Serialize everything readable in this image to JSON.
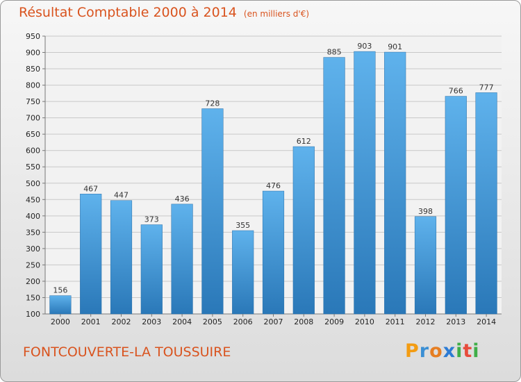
{
  "header": {
    "title": "Résultat Comptable 2000 à 2014",
    "unit_note": "(en milliers d'€)"
  },
  "footer": {
    "commune": "FONTCOUVERTE-LA TOUSSUIRE",
    "logo": "Proxiti"
  },
  "colors": {
    "accent": "#d9531e",
    "bar_top": "#5fb2ec",
    "bar_bottom": "#2a78b8",
    "logo_letters": [
      "#f39c12",
      "#3b8fd4",
      "#e67e22",
      "#2c7bd4",
      "#3fae49",
      "#e74c3c",
      "#3fae49"
    ]
  },
  "chart_data": {
    "type": "bar",
    "title": "Résultat Comptable 2000 à 2014",
    "subtitle": "(en milliers d'€)",
    "categories": [
      "2000",
      "2001",
      "2002",
      "2003",
      "2004",
      "2005",
      "2006",
      "2007",
      "2008",
      "2009",
      "2010",
      "2011",
      "2012",
      "2013",
      "2014"
    ],
    "values": [
      156,
      467,
      447,
      373,
      436,
      728,
      355,
      476,
      612,
      885,
      903,
      901,
      398,
      766,
      777
    ],
    "ylim": [
      100,
      950
    ],
    "yticks": [
      100,
      150,
      200,
      250,
      300,
      350,
      400,
      450,
      500,
      550,
      600,
      650,
      700,
      750,
      800,
      850,
      900,
      950
    ],
    "grid": "horizontal",
    "xlabel": "",
    "ylabel": ""
  }
}
